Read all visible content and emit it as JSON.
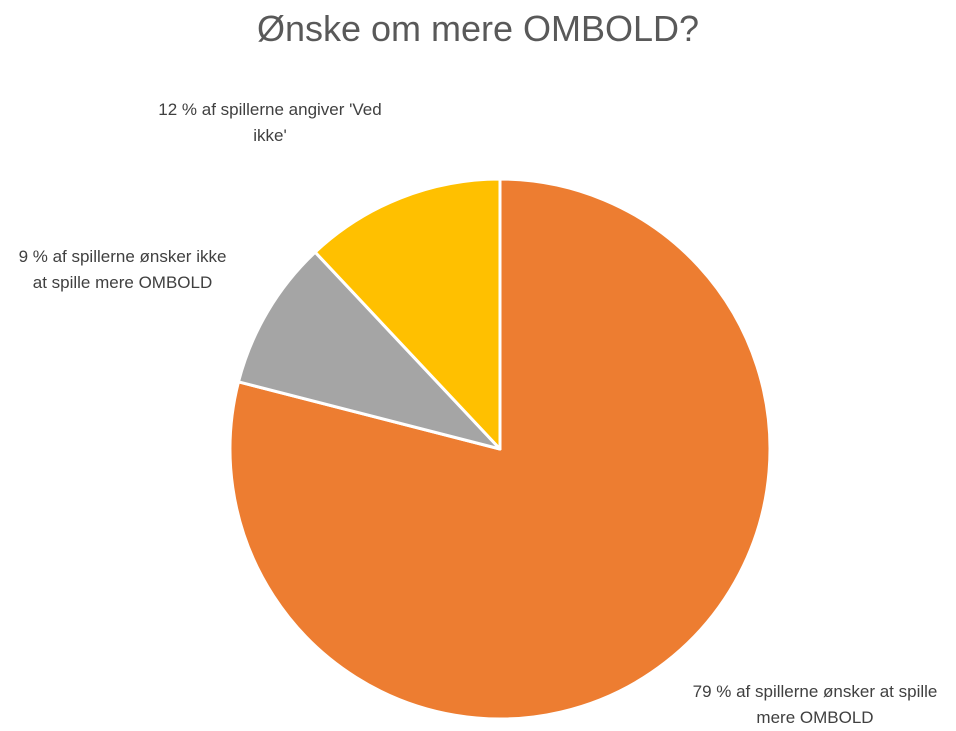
{
  "chart_data": {
    "type": "pie",
    "title": "Ønske om mere OMBOLD?",
    "values": [
      79,
      9,
      12
    ],
    "value_labels": [
      "79 % af spillerne ønsker at spille mere OMBOLD",
      "9 % af spillerne ønsker ikke at spille mere OMBOLD",
      "12 % af spillerne angiver 'Ved ikke'"
    ],
    "colors": [
      "#ed7d31",
      "#a5a5a5",
      "#ffc000"
    ]
  }
}
